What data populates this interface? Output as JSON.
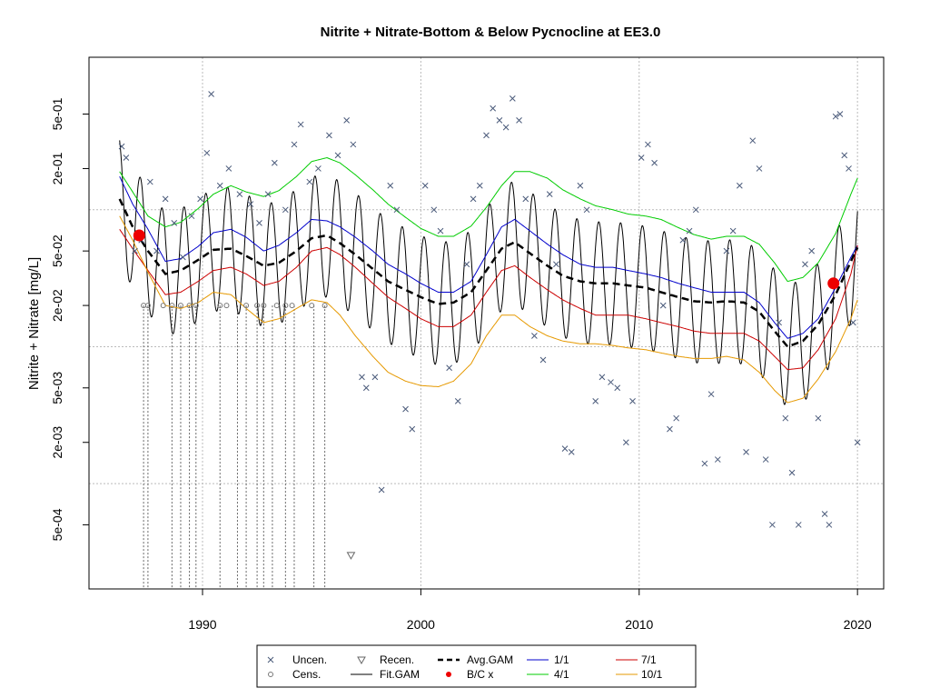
{
  "chart_data": {
    "type": "line",
    "title": "Nitrite + Nitrate-Bottom & Below Pycnocline at EE3.0",
    "xlabel": "",
    "ylabel": "Nitrite + Nitrate [mg/L]",
    "y_scale": "log",
    "xlim": [
      1984.8,
      2021.2
    ],
    "ylim": [
      0.00017,
      1.3
    ],
    "x_ticks": [
      1990,
      2000,
      2010,
      2020
    ],
    "y_ticks": [
      {
        "value": 0.0005,
        "label": "5e-04"
      },
      {
        "value": 0.002,
        "label": "2e-03"
      },
      {
        "value": 0.005,
        "label": "5e-03"
      },
      {
        "value": 0.02,
        "label": "2e-02"
      },
      {
        "value": 0.05,
        "label": "5e-02"
      },
      {
        "value": 0.2,
        "label": "2e-01"
      },
      {
        "value": 0.5,
        "label": "5e-01"
      }
    ],
    "grid": {
      "vertical": [
        1990,
        2000,
        2010,
        2020
      ],
      "horizontal": [
        0.001,
        0.01,
        0.1
      ]
    },
    "series": [
      {
        "name": "4/1",
        "color": "#00cc00",
        "x": [
          1986.2,
          1986.8,
          1987.5,
          1988.3,
          1989.0,
          1989.8,
          1990.5,
          1991.3,
          1992.0,
          1992.8,
          1993.5,
          1994.3,
          1995.0,
          1995.7,
          1996.3,
          1997.0,
          1997.8,
          1998.5,
          1999.3,
          2000.0,
          2000.8,
          2001.5,
          2002.3,
          2003.0,
          2003.7,
          2004.3,
          2005.0,
          2005.8,
          2006.5,
          2007.3,
          2008.0,
          2008.8,
          2009.5,
          2010.3,
          2011.0,
          2011.8,
          2012.5,
          2013.3,
          2014.0,
          2014.8,
          2015.5,
          2016.2,
          2016.8,
          2017.5,
          2018.2,
          2019.0,
          2019.7,
          2020.0
        ],
        "y": [
          0.19,
          0.135,
          0.09,
          0.075,
          0.081,
          0.102,
          0.13,
          0.15,
          0.135,
          0.125,
          0.138,
          0.175,
          0.225,
          0.24,
          0.22,
          0.18,
          0.14,
          0.11,
          0.088,
          0.073,
          0.064,
          0.064,
          0.076,
          0.104,
          0.15,
          0.19,
          0.19,
          0.17,
          0.14,
          0.12,
          0.107,
          0.1,
          0.093,
          0.09,
          0.085,
          0.074,
          0.066,
          0.061,
          0.064,
          0.064,
          0.056,
          0.041,
          0.03,
          0.032,
          0.041,
          0.067,
          0.13,
          0.17
        ]
      },
      {
        "name": "1/1",
        "color": "#0000cc",
        "x": [
          1986.2,
          1986.8,
          1987.5,
          1988.3,
          1989.0,
          1989.8,
          1990.5,
          1991.3,
          1992.0,
          1992.8,
          1993.5,
          1994.3,
          1995.0,
          1995.7,
          1996.3,
          1997.0,
          1997.8,
          1998.5,
          1999.3,
          2000.0,
          2000.8,
          2001.5,
          2002.3,
          2003.0,
          2003.7,
          2004.3,
          2005.0,
          2005.8,
          2006.5,
          2007.3,
          2008.0,
          2008.8,
          2009.5,
          2010.3,
          2011.0,
          2011.8,
          2012.5,
          2013.3,
          2014.0,
          2014.8,
          2015.5,
          2016.2,
          2016.8,
          2017.5,
          2018.2,
          2019.0,
          2019.7,
          2020.0
        ],
        "y": [
          0.175,
          0.11,
          0.072,
          0.042,
          0.044,
          0.054,
          0.068,
          0.072,
          0.063,
          0.05,
          0.055,
          0.068,
          0.085,
          0.083,
          0.075,
          0.063,
          0.05,
          0.04,
          0.034,
          0.029,
          0.025,
          0.025,
          0.03,
          0.047,
          0.075,
          0.085,
          0.07,
          0.056,
          0.047,
          0.04,
          0.038,
          0.038,
          0.036,
          0.034,
          0.032,
          0.029,
          0.027,
          0.025,
          0.025,
          0.025,
          0.021,
          0.015,
          0.0115,
          0.0125,
          0.016,
          0.027,
          0.045,
          0.055
        ]
      },
      {
        "name": "7/1",
        "color": "#cc0000",
        "x": [
          1986.2,
          1986.8,
          1987.5,
          1988.3,
          1989.0,
          1989.8,
          1990.5,
          1991.3,
          1992.0,
          1992.8,
          1993.5,
          1994.3,
          1995.0,
          1995.7,
          1996.3,
          1997.0,
          1997.8,
          1998.5,
          1999.3,
          2000.0,
          2000.8,
          2001.5,
          2002.3,
          2003.0,
          2003.7,
          2004.3,
          2005.0,
          2005.8,
          2006.5,
          2007.3,
          2008.0,
          2008.8,
          2009.5,
          2010.3,
          2011.0,
          2011.8,
          2012.5,
          2013.3,
          2014.0,
          2014.8,
          2015.5,
          2016.2,
          2016.8,
          2017.5,
          2018.2,
          2019.0,
          2019.7,
          2020.0
        ],
        "y": [
          0.072,
          0.052,
          0.036,
          0.024,
          0.025,
          0.03,
          0.036,
          0.038,
          0.034,
          0.028,
          0.03,
          0.038,
          0.05,
          0.053,
          0.047,
          0.038,
          0.029,
          0.023,
          0.019,
          0.016,
          0.014,
          0.014,
          0.017,
          0.025,
          0.036,
          0.039,
          0.032,
          0.026,
          0.022,
          0.019,
          0.017,
          0.017,
          0.017,
          0.016,
          0.015,
          0.014,
          0.013,
          0.0125,
          0.0125,
          0.0125,
          0.011,
          0.0085,
          0.0068,
          0.007,
          0.0095,
          0.016,
          0.034,
          0.055
        ]
      },
      {
        "name": "10/1",
        "color": "#e69900",
        "x": [
          1986.2,
          1986.8,
          1987.5,
          1988.3,
          1989.0,
          1989.8,
          1990.5,
          1991.3,
          1992.0,
          1992.8,
          1993.5,
          1994.3,
          1995.0,
          1995.7,
          1996.3,
          1997.0,
          1997.8,
          1998.5,
          1999.3,
          2000.0,
          2000.8,
          2001.5,
          2002.3,
          2003.0,
          2003.7,
          2004.3,
          2005.0,
          2005.8,
          2006.5,
          2007.3,
          2008.0,
          2008.8,
          2009.5,
          2010.3,
          2011.0,
          2011.8,
          2012.5,
          2013.3,
          2014.0,
          2014.8,
          2015.5,
          2016.2,
          2016.8,
          2017.5,
          2018.2,
          2019.0,
          2019.7,
          2020.0
        ],
        "y": [
          0.09,
          0.06,
          0.035,
          0.02,
          0.019,
          0.021,
          0.025,
          0.024,
          0.019,
          0.015,
          0.016,
          0.019,
          0.022,
          0.021,
          0.017,
          0.012,
          0.0085,
          0.0065,
          0.0056,
          0.0052,
          0.0051,
          0.0056,
          0.0075,
          0.012,
          0.017,
          0.017,
          0.014,
          0.012,
          0.011,
          0.0105,
          0.0105,
          0.0102,
          0.0098,
          0.0095,
          0.009,
          0.0085,
          0.0082,
          0.0082,
          0.0085,
          0.008,
          0.0065,
          0.0048,
          0.0039,
          0.0042,
          0.0058,
          0.0092,
          0.016,
          0.022
        ]
      },
      {
        "name": "Avg.GAM",
        "color": "#000000",
        "dash": true,
        "x": [
          1986.2,
          1986.8,
          1987.5,
          1988.3,
          1989.0,
          1989.8,
          1990.5,
          1991.3,
          1992.0,
          1992.8,
          1993.5,
          1994.3,
          1995.0,
          1995.7,
          1996.3,
          1997.0,
          1997.8,
          1998.5,
          1999.3,
          2000.0,
          2000.8,
          2001.5,
          2002.3,
          2003.0,
          2003.7,
          2004.3,
          2005.0,
          2005.8,
          2006.5,
          2007.3,
          2008.0,
          2008.8,
          2009.5,
          2010.3,
          2011.0,
          2011.8,
          2012.5,
          2013.3,
          2014.0,
          2014.8,
          2015.5,
          2016.2,
          2016.8,
          2017.5,
          2018.2,
          2019.0,
          2019.7,
          2020.0
        ],
        "y": [
          0.12,
          0.075,
          0.05,
          0.034,
          0.036,
          0.043,
          0.051,
          0.052,
          0.046,
          0.039,
          0.041,
          0.05,
          0.062,
          0.065,
          0.057,
          0.047,
          0.037,
          0.03,
          0.026,
          0.023,
          0.0205,
          0.021,
          0.025,
          0.036,
          0.052,
          0.058,
          0.048,
          0.039,
          0.033,
          0.03,
          0.029,
          0.029,
          0.028,
          0.027,
          0.025,
          0.023,
          0.0215,
          0.021,
          0.0215,
          0.021,
          0.018,
          0.013,
          0.01,
          0.011,
          0.0145,
          0.024,
          0.042,
          0.053
        ]
      }
    ],
    "fit_gam": {
      "name": "Fit.GAM",
      "color": "#000000",
      "note_cycle": "seasonal oscillation around Avg.GAM",
      "amplitude_log10": 0.45
    },
    "bc_points": [
      {
        "x": 1987.1,
        "y": 0.065
      },
      {
        "x": 2018.9,
        "y": 0.029
      }
    ],
    "uncensored_points": [
      [
        1986.3,
        0.29
      ],
      [
        1986.5,
        0.24
      ],
      [
        1986.9,
        0.05
      ],
      [
        1987.2,
        0.06
      ],
      [
        1987.6,
        0.16
      ],
      [
        1987.9,
        0.05
      ],
      [
        1988.3,
        0.12
      ],
      [
        1988.7,
        0.08
      ],
      [
        1989.1,
        0.045
      ],
      [
        1989.5,
        0.09
      ],
      [
        1989.9,
        0.12
      ],
      [
        1990.2,
        0.26
      ],
      [
        1990.4,
        0.7
      ],
      [
        1990.8,
        0.15
      ],
      [
        1991.2,
        0.2
      ],
      [
        1991.7,
        0.13
      ],
      [
        1992.2,
        0.11
      ],
      [
        1992.6,
        0.08
      ],
      [
        1993.0,
        0.13
      ],
      [
        1993.3,
        0.22
      ],
      [
        1993.8,
        0.1
      ],
      [
        1994.2,
        0.3
      ],
      [
        1994.5,
        0.42
      ],
      [
        1994.9,
        0.16
      ],
      [
        1995.3,
        0.2
      ],
      [
        1995.8,
        0.35
      ],
      [
        1996.2,
        0.25
      ],
      [
        1996.6,
        0.45
      ],
      [
        1996.9,
        0.3
      ],
      [
        1997.3,
        0.006
      ],
      [
        1997.5,
        0.005
      ],
      [
        1997.9,
        0.006
      ],
      [
        1998.2,
        0.0009
      ],
      [
        1998.6,
        0.15
      ],
      [
        1998.9,
        0.1
      ],
      [
        1999.3,
        0.0035
      ],
      [
        1999.6,
        0.0025
      ],
      [
        2000.2,
        0.15
      ],
      [
        2000.6,
        0.1
      ],
      [
        2000.9,
        0.07
      ],
      [
        2001.3,
        0.007
      ],
      [
        2001.7,
        0.004
      ],
      [
        2002.1,
        0.04
      ],
      [
        2002.4,
        0.12
      ],
      [
        2002.7,
        0.15
      ],
      [
        2003.0,
        0.35
      ],
      [
        2003.3,
        0.55
      ],
      [
        2003.6,
        0.45
      ],
      [
        2003.9,
        0.4
      ],
      [
        2004.2,
        0.65
      ],
      [
        2004.5,
        0.45
      ],
      [
        2004.8,
        0.12
      ],
      [
        2005.2,
        0.012
      ],
      [
        2005.6,
        0.008
      ],
      [
        2005.9,
        0.13
      ],
      [
        2006.2,
        0.04
      ],
      [
        2006.6,
        0.0018
      ],
      [
        2006.9,
        0.0017
      ],
      [
        2007.3,
        0.15
      ],
      [
        2007.6,
        0.1
      ],
      [
        2008.0,
        0.004
      ],
      [
        2008.3,
        0.006
      ],
      [
        2008.7,
        0.0055
      ],
      [
        2009.0,
        0.005
      ],
      [
        2009.4,
        0.002
      ],
      [
        2009.7,
        0.004
      ],
      [
        2010.1,
        0.24
      ],
      [
        2010.4,
        0.3
      ],
      [
        2010.7,
        0.22
      ],
      [
        2011.1,
        0.02
      ],
      [
        2011.4,
        0.0025
      ],
      [
        2011.7,
        0.003
      ],
      [
        2012.0,
        0.06
      ],
      [
        2012.3,
        0.07
      ],
      [
        2012.6,
        0.1
      ],
      [
        2013.0,
        0.0014
      ],
      [
        2013.3,
        0.0045
      ],
      [
        2013.6,
        0.0015
      ],
      [
        2014.0,
        0.05
      ],
      [
        2014.3,
        0.07
      ],
      [
        2014.6,
        0.15
      ],
      [
        2014.9,
        0.0017
      ],
      [
        2015.2,
        0.32
      ],
      [
        2015.5,
        0.2
      ],
      [
        2015.8,
        0.0015
      ],
      [
        2016.1,
        0.0005
      ],
      [
        2016.4,
        0.015
      ],
      [
        2016.7,
        0.003
      ],
      [
        2017.0,
        0.0012
      ],
      [
        2017.3,
        0.0005
      ],
      [
        2017.6,
        0.04
      ],
      [
        2017.9,
        0.05
      ],
      [
        2018.2,
        0.003
      ],
      [
        2018.5,
        0.0006
      ],
      [
        2018.7,
        0.0005
      ],
      [
        2019.0,
        0.48
      ],
      [
        2019.2,
        0.5
      ],
      [
        2019.4,
        0.25
      ],
      [
        2019.6,
        0.2
      ],
      [
        2019.8,
        0.015
      ],
      [
        2020.0,
        0.002
      ]
    ],
    "censored_points": [
      [
        1987.3,
        0.02
      ],
      [
        1987.5,
        0.02
      ],
      [
        1988.2,
        0.02
      ],
      [
        1988.6,
        0.02
      ],
      [
        1989.0,
        0.02
      ],
      [
        1989.4,
        0.02
      ],
      [
        1989.7,
        0.02
      ],
      [
        1990.8,
        0.02
      ],
      [
        1991.1,
        0.02
      ],
      [
        1992.0,
        0.02
      ],
      [
        1992.5,
        0.02
      ],
      [
        1992.8,
        0.02
      ],
      [
        1993.4,
        0.02
      ],
      [
        1993.8,
        0.02
      ],
      [
        1994.1,
        0.02
      ],
      [
        1995.0,
        0.02
      ],
      [
        1995.6,
        0.02
      ]
    ],
    "censored_drop_x": [
      1987.3,
      1987.5,
      1988.6,
      1989.0,
      1989.4,
      1989.7,
      1990.8,
      1991.6,
      1992.0,
      1992.5,
      1992.8,
      1993.2,
      1993.8,
      1994.2,
      1995.1,
      1995.6
    ],
    "recensored_points": [
      [
        1996.8,
        0.0003
      ]
    ],
    "legend": {
      "placement": "bottom-center",
      "items": [
        {
          "label": "Uncen.",
          "symbol": "cross"
        },
        {
          "label": "Cens.",
          "symbol": "circle"
        },
        {
          "label": "Recen.",
          "symbol": "triangle-down"
        },
        {
          "label": "Fit.GAM",
          "symbol": "line",
          "color": "#000000"
        },
        {
          "label": "Avg.GAM",
          "symbol": "dashed",
          "color": "#000000"
        },
        {
          "label": "B/C x",
          "symbol": "dot",
          "color": "#ee0000"
        },
        {
          "label": "1/1",
          "symbol": "line",
          "color": "#0000cc"
        },
        {
          "label": "4/1",
          "symbol": "line",
          "color": "#00cc00"
        },
        {
          "label": "7/1",
          "symbol": "line",
          "color": "#cc0000"
        },
        {
          "label": "10/1",
          "symbol": "line",
          "color": "#e69900"
        }
      ]
    }
  }
}
